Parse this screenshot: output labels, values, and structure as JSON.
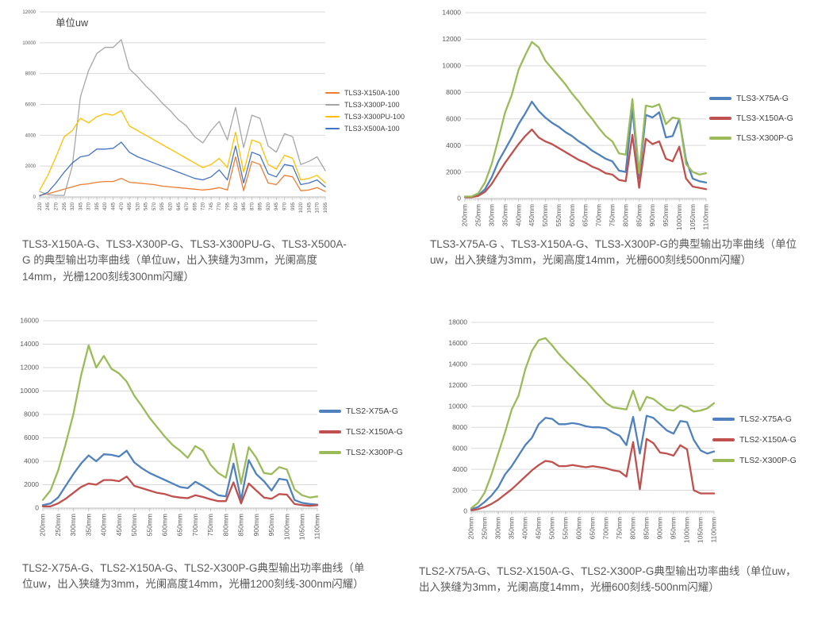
{
  "page": {
    "background": "#ffffff"
  },
  "colors": {
    "grid": "#d9d9d9",
    "axis": "#bfbfbf",
    "tick_label": "#595959",
    "caption_text": "#595959"
  },
  "chart_data": [
    {
      "type": "line",
      "title": "单位uw",
      "x_tick_labels": [
        "220",
        "245",
        "270",
        "295",
        "320",
        "345",
        "370",
        "395",
        "420",
        "445",
        "470",
        "495",
        "520",
        "545",
        "570",
        "595",
        "620",
        "645",
        "670",
        "695",
        "720",
        "745",
        "770",
        "795",
        "820",
        "845",
        "870",
        "895",
        "920",
        "945",
        "970",
        "995",
        "1020",
        "1045",
        "1070",
        "1095"
      ],
      "ylim": [
        0,
        12000
      ],
      "y_step": 2000,
      "grid": true,
      "legend_position": "right",
      "series": [
        {
          "name": "TLS3-X150A-100",
          "color": "#ED7D31",
          "values": [
            100,
            200,
            350,
            500,
            650,
            800,
            850,
            950,
            1000,
            1000,
            1200,
            950,
            900,
            850,
            800,
            700,
            650,
            600,
            550,
            500,
            450,
            500,
            600,
            450,
            2600,
            400,
            2300,
            2100,
            900,
            800,
            1400,
            1300,
            400,
            450,
            600,
            350
          ]
        },
        {
          "name": "TLS3-X300P-100",
          "color": "#A6A6A6",
          "values": [
            350,
            150,
            100,
            100,
            2000,
            6500,
            8200,
            9300,
            9700,
            9700,
            10200,
            8300,
            7800,
            7200,
            6700,
            6100,
            5600,
            5000,
            4600,
            3900,
            3500,
            4300,
            4900,
            3700,
            5800,
            3200,
            5300,
            5100,
            3300,
            2900,
            4100,
            3900,
            2100,
            2300,
            2600,
            1700
          ]
        },
        {
          "name": "TLS3-X300PU-100",
          "color": "#FFC000",
          "values": [
            450,
            1400,
            2600,
            3900,
            4300,
            5100,
            4800,
            5200,
            5400,
            5300,
            5600,
            4600,
            4300,
            4000,
            3700,
            3400,
            3100,
            2800,
            2500,
            2200,
            1900,
            2100,
            2500,
            1900,
            4200,
            1600,
            3700,
            3500,
            2100,
            1800,
            2700,
            2500,
            1100,
            1200,
            1400,
            900
          ]
        },
        {
          "name": "TLS3-X500A-100",
          "color": "#4472C4",
          "values": [
            60,
            300,
            900,
            1600,
            2200,
            2600,
            2700,
            3100,
            3100,
            3150,
            3550,
            2900,
            2600,
            2400,
            2200,
            2000,
            1800,
            1600,
            1400,
            1200,
            1100,
            1300,
            1750,
            1100,
            3300,
            900,
            2900,
            2700,
            1500,
            1300,
            2100,
            2000,
            800,
            900,
            1100,
            650
          ]
        }
      ],
      "caption": "TLS3-X150A-G、TLS3-X300P-G、TLS3-X300PU-G、TLS3-X500A-G 的典型输出功率曲线（单位uw，出入狭缝为3mm，光阑高度 14mm，光栅1200刻线300nm闪耀）"
    },
    {
      "type": "line",
      "x_tick_labels": [
        "200mm",
        "250mm",
        "300mm",
        "350mm",
        "400mm",
        "450mm",
        "500mm",
        "550mm",
        "600mm",
        "650mm",
        "700mm",
        "750mm",
        "800mm",
        "850mm",
        "900mm",
        "950mm",
        "1000mm",
        "1050mm",
        "1100mm"
      ],
      "ylim": [
        0,
        14000
      ],
      "y_step": 2000,
      "grid": true,
      "legend_position": "right",
      "series": [
        {
          "name": "TLS3-X75A-G",
          "color": "#4F81BD",
          "values": [
            100,
            100,
            250,
            700,
            1600,
            2800,
            3700,
            4600,
            5600,
            6400,
            7300,
            6600,
            6100,
            5700,
            5400,
            5000,
            4700,
            4300,
            4000,
            3600,
            3300,
            3000,
            2800,
            2100,
            2000,
            6800,
            1500,
            6300,
            6100,
            6500,
            4600,
            4700,
            6000,
            2900,
            1500,
            1300,
            1200
          ]
        },
        {
          "name": "TLS3-X150A-G",
          "color": "#C0504D",
          "values": [
            100,
            100,
            200,
            500,
            1100,
            1900,
            2700,
            3400,
            4100,
            4700,
            5200,
            4600,
            4300,
            4100,
            3800,
            3500,
            3200,
            2900,
            2700,
            2400,
            2200,
            1900,
            1800,
            1400,
            1300,
            4800,
            800,
            4500,
            4100,
            4300,
            3000,
            2800,
            3900,
            1500,
            900,
            800,
            700
          ]
        },
        {
          "name": "TLS3-X300P-G",
          "color": "#9BBB59",
          "values": [
            150,
            150,
            400,
            1200,
            2600,
            4500,
            6500,
            7800,
            9700,
            10800,
            11800,
            11400,
            10400,
            9800,
            9200,
            8600,
            7900,
            7300,
            6600,
            6000,
            5300,
            4700,
            4300,
            3400,
            3300,
            7500,
            1900,
            7000,
            6900,
            7100,
            5600,
            6100,
            6000,
            2600,
            2000,
            1800,
            1900
          ]
        }
      ],
      "caption": "TLS3-X75A-G 、TLS3-X150A-G、TLS3-X300P-G的典型输出功率曲线（单位uw，出入狭缝为3mm，光阑高度14mm，光栅600刻线500nm闪耀）"
    },
    {
      "type": "line",
      "x_tick_labels": [
        "200mm",
        "250mm",
        "300mm",
        "350mm",
        "400mm",
        "450mm",
        "500mm",
        "550mm",
        "600mm",
        "650mm",
        "700mm",
        "750mm",
        "800mm",
        "850mm",
        "900mm",
        "950mm",
        "1000mm",
        "1050mm",
        "1100mm"
      ],
      "ylim": [
        0,
        16000
      ],
      "y_step": 2000,
      "grid": true,
      "legend_position": "right",
      "series": [
        {
          "name": "TLS2-X75A-G",
          "color": "#4F81BD",
          "values": [
            250,
            400,
            900,
            1900,
            2900,
            3800,
            4500,
            4000,
            4600,
            4550,
            4400,
            4900,
            3900,
            3400,
            3000,
            2700,
            2400,
            2100,
            1800,
            1700,
            2250,
            1900,
            1500,
            1100,
            1000,
            3800,
            700,
            4100,
            2900,
            2300,
            1500,
            2500,
            2400,
            700,
            450,
            350,
            300
          ]
        },
        {
          "name": "TLS2-X150A-G",
          "color": "#C0504D",
          "values": [
            150,
            150,
            400,
            800,
            1300,
            1800,
            2100,
            2000,
            2400,
            2400,
            2300,
            2700,
            1900,
            1700,
            1500,
            1300,
            1200,
            1000,
            900,
            850,
            1100,
            950,
            750,
            600,
            600,
            2200,
            400,
            2100,
            1500,
            900,
            800,
            1200,
            1150,
            350,
            250,
            200,
            250
          ]
        },
        {
          "name": "TLS2-X300P-G",
          "color": "#9BBB59",
          "values": [
            700,
            1500,
            3200,
            5500,
            8000,
            11300,
            13900,
            12000,
            13000,
            11900,
            11500,
            10800,
            9600,
            8700,
            7700,
            6900,
            6100,
            5400,
            4900,
            4300,
            5300,
            4900,
            3700,
            3000,
            2600,
            5500,
            2100,
            5200,
            4300,
            3000,
            2900,
            3500,
            3300,
            1600,
            1100,
            900,
            1000
          ]
        }
      ],
      "caption": "TLS2-X75A-G、TLS2-X150A-G、TLS2-X300P-G典型输出功率曲线（单位uw，出入狭缝为3mm，光阑高度14mm，光栅1200刻线-300nm闪耀）"
    },
    {
      "type": "line",
      "x_tick_labels": [
        "200mm",
        "250mm",
        "300mm",
        "350mm",
        "400mm",
        "450mm",
        "500mm",
        "550mm",
        "600mm",
        "650mm",
        "700mm",
        "750mm",
        "800mm",
        "850mm",
        "900mm",
        "950mm",
        "1000mm",
        "1050mm",
        "1100mm"
      ],
      "ylim": [
        0,
        18000
      ],
      "y_step": 2000,
      "grid": true,
      "legend_position": "right",
      "series": [
        {
          "name": "TLS2-X75A-G",
          "color": "#4F81BD",
          "values": [
            200,
            400,
            900,
            1500,
            2300,
            3500,
            4300,
            5300,
            6300,
            7000,
            8300,
            8900,
            8800,
            8300,
            8300,
            8400,
            8300,
            8100,
            8000,
            8000,
            7900,
            7500,
            7200,
            6300,
            9000,
            5500,
            9100,
            8900,
            8300,
            7700,
            7400,
            8600,
            8500,
            6800,
            5800,
            5500,
            5700
          ]
        },
        {
          "name": "TLS2-X150A-G",
          "color": "#C0504D",
          "values": [
            100,
            200,
            400,
            700,
            1100,
            1600,
            2100,
            2700,
            3300,
            3900,
            4400,
            4800,
            4700,
            4300,
            4300,
            4400,
            4300,
            4200,
            4300,
            4200,
            4100,
            3900,
            3800,
            3300,
            6600,
            2100,
            6900,
            6500,
            5600,
            5500,
            5300,
            6300,
            5900,
            2000,
            1700,
            1700,
            1700
          ]
        },
        {
          "name": "TLS2-X300P-G",
          "color": "#9BBB59",
          "values": [
            300,
            800,
            1800,
            3500,
            5500,
            7500,
            9700,
            11000,
            13500,
            15300,
            16300,
            16500,
            15800,
            15000,
            14300,
            13700,
            13000,
            12400,
            11700,
            11000,
            10300,
            9900,
            9800,
            9700,
            11500,
            9600,
            10900,
            10700,
            10200,
            9700,
            9600,
            10100,
            9900,
            9500,
            9600,
            9800,
            10300
          ]
        }
      ],
      "caption": "TLS2-X75A-G、TLS2-X150A-G、TLS2-X300P-G典型输出功率曲线（单位uw，出入狭缝为3mm，光阑高度14mm，光栅600刻线-500nm闪耀）"
    }
  ]
}
